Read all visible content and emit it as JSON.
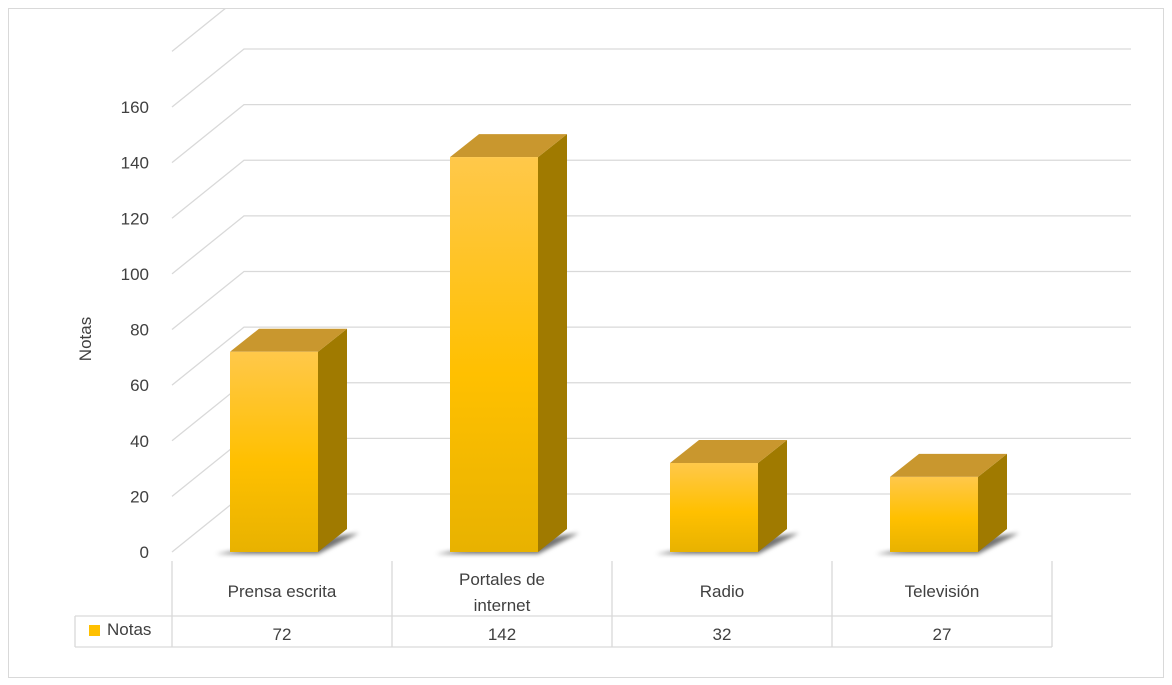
{
  "chart_data": {
    "type": "bar",
    "categories": [
      "Prensa escrita",
      "Portales de internet",
      "Radio",
      "Televisión"
    ],
    "category_label_lines": [
      [
        "Prensa escrita"
      ],
      [
        "Portales de",
        "internet"
      ],
      [
        "Radio"
      ],
      [
        "Televisión"
      ]
    ],
    "series": [
      {
        "name": "Notas",
        "values": [
          72,
          142,
          32,
          27
        ]
      }
    ],
    "title": "",
    "xlabel": "",
    "ylabel": "Notas",
    "ylim": [
      0,
      160
    ],
    "yticks": [
      0,
      20,
      40,
      60,
      80,
      100,
      120,
      140,
      160
    ],
    "grid": true,
    "legend": "in data table",
    "data_table": true,
    "colors": {
      "bar_front_top": "#ffc84a",
      "bar_front_mid": "#ffc000",
      "bar_front_bottom": "#e8b200",
      "bar_side": "#a07a00",
      "bar_top": "#c9972e",
      "legend_swatch": "#ffc000",
      "grid": "#d9d9d9",
      "text": "#404040"
    }
  }
}
